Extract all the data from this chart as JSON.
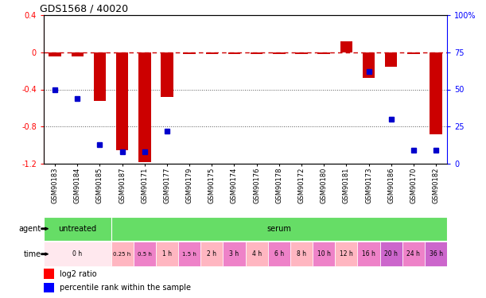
{
  "title": "GDS1568 / 40020",
  "samples": [
    "GSM90183",
    "GSM90184",
    "GSM90185",
    "GSM90187",
    "GSM90171",
    "GSM90177",
    "GSM90179",
    "GSM90175",
    "GSM90174",
    "GSM90176",
    "GSM90178",
    "GSM90172",
    "GSM90180",
    "GSM90181",
    "GSM90173",
    "GSM90186",
    "GSM90170",
    "GSM90182"
  ],
  "log2_ratio": [
    -0.05,
    -0.05,
    -0.52,
    -1.05,
    -1.18,
    -0.48,
    -0.02,
    -0.02,
    -0.02,
    -0.02,
    -0.02,
    -0.02,
    -0.02,
    0.12,
    -0.28,
    -0.16,
    -0.02,
    -0.88
  ],
  "pct_rank": [
    50,
    44,
    13,
    8,
    8,
    22,
    null,
    null,
    null,
    null,
    null,
    null,
    null,
    null,
    62,
    30,
    9,
    9
  ],
  "bar_color": "#CC0000",
  "dot_color": "#0000CC",
  "ylim_left": [
    -1.2,
    0.4
  ],
  "ylim_right": [
    0,
    100
  ],
  "hline_color": "#CC0000",
  "dotted_line_color": "#555555",
  "green_color": "#66DD66",
  "time_spans": [
    {
      "label": "0 h",
      "start": 0,
      "end": 3,
      "color": "#FFE8EE"
    },
    {
      "label": "0.25 h",
      "start": 3,
      "end": 4,
      "color": "#FFB6C1"
    },
    {
      "label": "0.5 h",
      "start": 4,
      "end": 5,
      "color": "#EE82C8"
    },
    {
      "label": "1 h",
      "start": 5,
      "end": 6,
      "color": "#FFB6C1"
    },
    {
      "label": "1.5 h",
      "start": 6,
      "end": 7,
      "color": "#EE82C8"
    },
    {
      "label": "2 h",
      "start": 7,
      "end": 8,
      "color": "#FFB6C1"
    },
    {
      "label": "3 h",
      "start": 8,
      "end": 9,
      "color": "#EE82C8"
    },
    {
      "label": "4 h",
      "start": 9,
      "end": 10,
      "color": "#FFB6C1"
    },
    {
      "label": "6 h",
      "start": 10,
      "end": 11,
      "color": "#EE82C8"
    },
    {
      "label": "8 h",
      "start": 11,
      "end": 12,
      "color": "#FFB6C1"
    },
    {
      "label": "10 h",
      "start": 12,
      "end": 13,
      "color": "#EE82C8"
    },
    {
      "label": "12 h",
      "start": 13,
      "end": 14,
      "color": "#FFB6C1"
    },
    {
      "label": "16 h",
      "start": 14,
      "end": 15,
      "color": "#EE82C8"
    },
    {
      "label": "20 h",
      "start": 15,
      "end": 16,
      "color": "#CC66CC"
    },
    {
      "label": "24 h",
      "start": 16,
      "end": 17,
      "color": "#EE82C8"
    },
    {
      "label": "36 h",
      "start": 17,
      "end": 18,
      "color": "#CC66CC"
    }
  ]
}
